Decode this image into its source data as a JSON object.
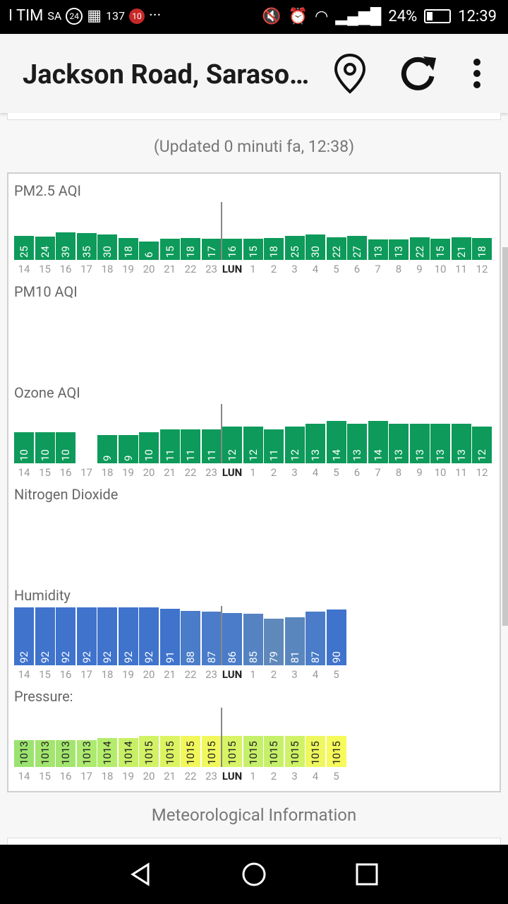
{
  "status_bar": {
    "carrier": "I TIM",
    "carrier_suffix": "SA",
    "badge_24": "24",
    "badge_137": "137",
    "badge_10": "10",
    "dots": "···",
    "battery": "24%",
    "time": "12:39"
  },
  "app_bar": {
    "title": "Jackson Road, Sarasota",
    "location_icon": "map-pin-icon",
    "refresh_icon": "refresh-icon",
    "menu_icon": "more-vert-icon"
  },
  "updated_text": "(Updated 0 minuti fa, 12:38)",
  "sections": {
    "pm25": "PM2.5 AQI",
    "pm10": "PM10 AQI",
    "ozone": "Ozone AQI",
    "no2": "Nitrogen Dioxide",
    "humidity": "Humidity",
    "pressure": "Pressure:"
  },
  "meteo_title": "Meteorological Information",
  "chart_data": [
    {
      "type": "bar",
      "title": "PM2.5 AQI",
      "categories": [
        "14",
        "15",
        "16",
        "17",
        "18",
        "19",
        "20",
        "21",
        "22",
        "23",
        "LUN",
        "1",
        "2",
        "3",
        "4",
        "5",
        "6",
        "7",
        "8",
        "9",
        "10",
        "11",
        "12"
      ],
      "values": [
        25,
        24,
        39,
        35,
        30,
        18,
        6,
        15,
        18,
        17,
        16,
        15,
        18,
        25,
        30,
        22,
        27,
        13,
        13,
        22,
        15,
        21,
        18
      ],
      "color": "#0d9a5a",
      "now_index": 10
    },
    {
      "type": "bar",
      "title": "PM10 AQI",
      "categories": [],
      "values": []
    },
    {
      "type": "bar",
      "title": "Ozone AQI",
      "categories": [
        "14",
        "15",
        "16",
        "17",
        "18",
        "19",
        "20",
        "21",
        "22",
        "23",
        "LUN",
        "1",
        "2",
        "3",
        "4",
        "5",
        "6",
        "7",
        "8",
        "9",
        "10",
        "11",
        "12"
      ],
      "values": [
        10,
        10,
        10,
        null,
        9,
        9,
        10,
        11,
        11,
        11,
        12,
        12,
        11,
        12,
        13,
        14,
        13,
        14,
        13,
        13,
        13,
        13,
        12
      ],
      "color": "#0d9a5a",
      "now_index": 10
    },
    {
      "type": "bar",
      "title": "Nitrogen Dioxide",
      "categories": [],
      "values": []
    },
    {
      "type": "bar",
      "title": "Humidity",
      "categories": [
        "14",
        "15",
        "16",
        "17",
        "18",
        "19",
        "20",
        "21",
        "22",
        "23",
        "LUN",
        "1",
        "2",
        "3",
        "4",
        "5"
      ],
      "values": [
        92,
        92,
        92,
        92,
        92,
        92,
        92,
        91,
        88,
        87,
        86,
        85,
        79,
        81,
        87,
        90
      ],
      "colors": [
        "#3f73cc",
        "#3f73cc",
        "#3f73cc",
        "#3f73cc",
        "#3f73cc",
        "#3f73cc",
        "#3f73cc",
        "#3f73cc",
        "#4a7cc9",
        "#4a7cc9",
        "#4a7cc9",
        "#5583c2",
        "#5f88bb",
        "#5a86be",
        "#4a7cc9",
        "#3f73cc"
      ],
      "now_index": 10
    },
    {
      "type": "bar",
      "title": "Pressure:",
      "categories": [
        "14",
        "15",
        "16",
        "17",
        "18",
        "19",
        "20",
        "21",
        "22",
        "23",
        "LUN",
        "1",
        "2",
        "3",
        "4",
        "5"
      ],
      "values": [
        1013,
        1013,
        1013,
        1013,
        1014,
        1014,
        1015,
        1015,
        1015,
        1015,
        1015,
        1015,
        1015,
        1015,
        1015,
        1015
      ],
      "colors": [
        "#9be370",
        "#a3e56e",
        "#a3e56e",
        "#acea70",
        "#b4ec6c",
        "#c7f066",
        "#d2f266",
        "#dcf462",
        "#f2f85c",
        "#f0f85e",
        "#d8f366",
        "#c6f06a",
        "#c6f06a",
        "#d0f266",
        "#eef85e",
        "#f6fa5a"
      ],
      "now_index": 10
    }
  ]
}
